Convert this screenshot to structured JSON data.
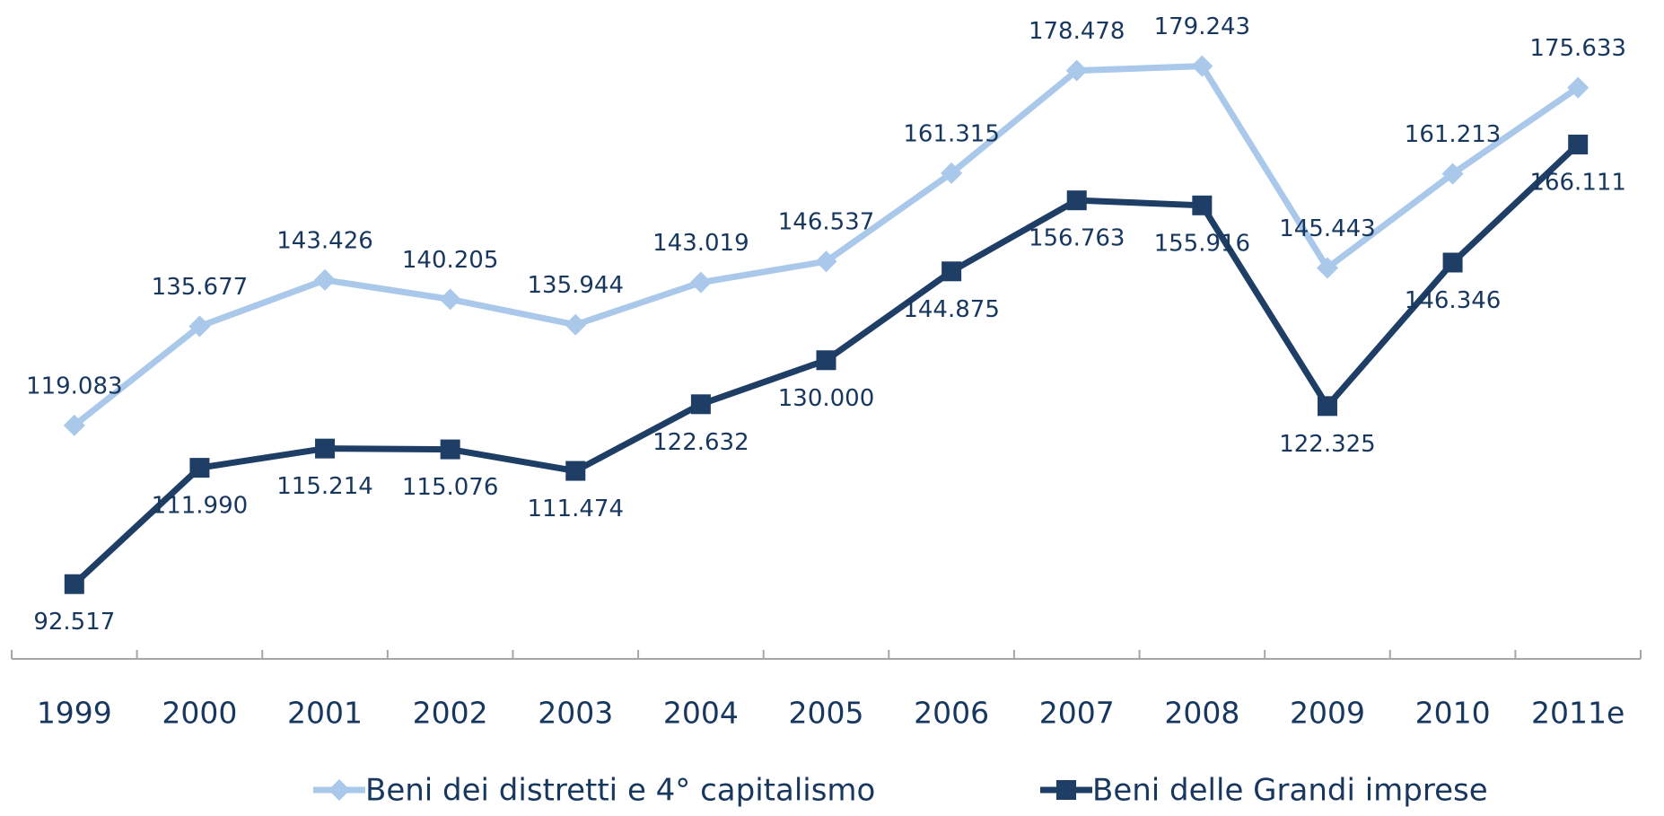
{
  "chart_data": {
    "type": "line",
    "categories": [
      "1999",
      "2000",
      "2001",
      "2002",
      "2003",
      "2004",
      "2005",
      "2006",
      "2007",
      "2008",
      "2009",
      "2010",
      "2011e"
    ],
    "series": [
      {
        "name": "Beni dei distretti e 4° capitalismo",
        "color": "#a9c8ea",
        "marker": "diamond",
        "values": [
          119.083,
          135.677,
          143.426,
          140.205,
          135.944,
          143.019,
          146.537,
          161.315,
          178.478,
          179.243,
          145.443,
          161.213,
          175.633
        ],
        "value_labels": [
          "119.083",
          "135.677",
          "143.426",
          "140.205",
          "135.944",
          "143.019",
          "146.537",
          "161.315",
          "178.478",
          "179.243",
          "145.443",
          "161.213",
          "175.633"
        ]
      },
      {
        "name": "Beni delle Grandi imprese",
        "color": "#1f3e66",
        "marker": "square",
        "values": [
          92.517,
          111.99,
          115.214,
          115.076,
          111.474,
          122.632,
          130.0,
          144.875,
          156.763,
          155.916,
          122.325,
          146.346,
          166.111
        ],
        "value_labels": [
          "92.517",
          "111.990",
          "115.214",
          "115.076",
          "111.474",
          "122.632",
          "130.000",
          "144.875",
          "156.763",
          "155.916",
          "122.325",
          "146.346",
          "166.111"
        ]
      }
    ],
    "ylim": [
      80,
      190
    ],
    "legend": "bottom"
  }
}
